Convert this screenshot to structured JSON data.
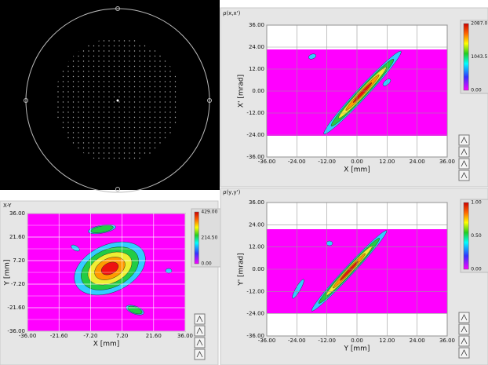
{
  "panels": [
    {
      "title": "ρ(x,x')",
      "x_label": "X [mm]",
      "y_label": "X' [mrad]",
      "x_ticks": [
        "-36.00",
        "-24.00",
        "-12.00",
        "0.00",
        "12.00",
        "24.00",
        "36.00"
      ],
      "y_ticks": [
        "36.00",
        "24.00",
        "12.00",
        "0.00",
        "-12.00",
        "-24.00",
        "-36.00"
      ],
      "colorbar_labels": [
        "2087.0",
        "1043.5",
        "0.00"
      ]
    },
    {
      "title": "X-Y",
      "x_label": "X [mm]",
      "y_label": "Y [mm]",
      "x_ticks": [
        "-36.00",
        "-21.60",
        "-7.20",
        "7.20",
        "21.60",
        "36.00"
      ],
      "y_ticks": [
        "36.00",
        "21.60",
        "7.20",
        "-7.20",
        "-21.60",
        "-36.00"
      ],
      "colorbar_labels": [
        "429.00",
        "214.50",
        "0.00"
      ]
    },
    {
      "title": "ρ(y,y')",
      "x_label": "Y [mm]",
      "y_label": "Y' [mrad]",
      "x_ticks": [
        "-36.00",
        "-24.00",
        "-12.00",
        "0.00",
        "12.00",
        "24.00",
        "36.00"
      ],
      "y_ticks": [
        "36.00",
        "24.00",
        "12.00",
        "0.00",
        "-12.00",
        "-24.00",
        "-36.00"
      ],
      "colorbar_labels": [
        "1.00",
        "0.50",
        "0.00"
      ]
    }
  ]
}
